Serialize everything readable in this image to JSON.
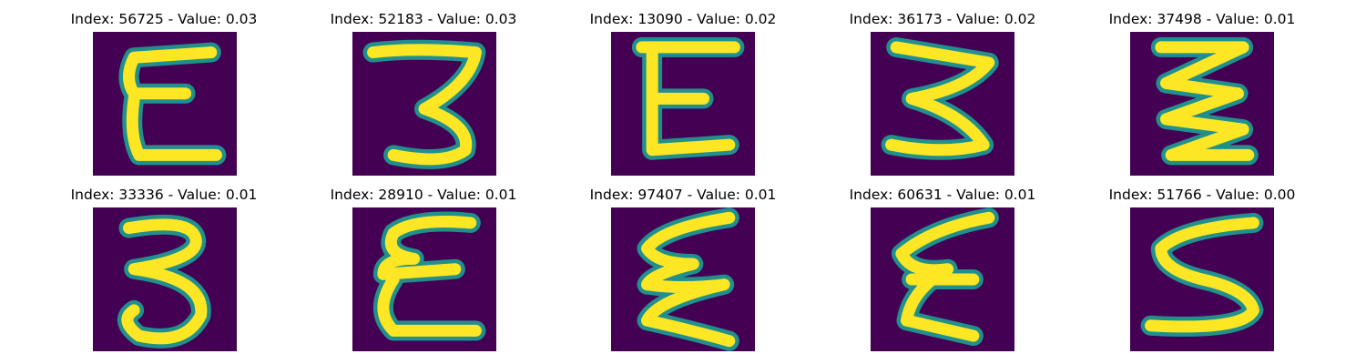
{
  "colors": {
    "background": "#440154",
    "glyph_edge": "#21908d",
    "glyph_mid": "#5ec962",
    "glyph_core": "#fde725"
  },
  "panels": [
    {
      "label": "Index: 56725 - Value: 0.03",
      "glyph": "handwritten-E"
    },
    {
      "label": "Index: 52183 - Value: 0.03",
      "glyph": "handwritten-3"
    },
    {
      "label": "Index: 13090 - Value: 0.02",
      "glyph": "handwritten-E"
    },
    {
      "label": "Index: 36173 - Value: 0.02",
      "glyph": "handwritten-Z"
    },
    {
      "label": "Index: 37498 - Value: 0.01",
      "glyph": "handwritten-zigzag"
    },
    {
      "label": "Index: 33336 - Value: 0.01",
      "glyph": "handwritten-3"
    },
    {
      "label": "Index: 28910 - Value: 0.01",
      "glyph": "handwritten-E"
    },
    {
      "label": "Index: 97407 - Value: 0.01",
      "glyph": "handwritten-E"
    },
    {
      "label": "Index: 60631 - Value: 0.01",
      "glyph": "handwritten-E"
    },
    {
      "label": "Index: 51766 - Value: 0.00",
      "glyph": "handwritten-S"
    }
  ]
}
